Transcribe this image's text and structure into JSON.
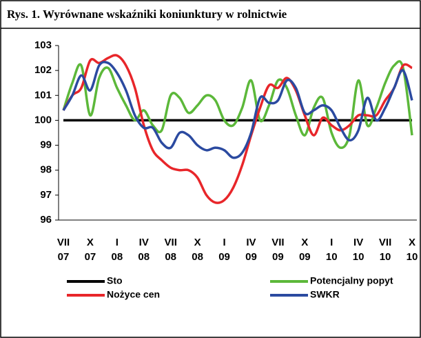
{
  "chart_data": {
    "type": "line",
    "title": "Rys. 1. Wyrównane wskaźniki koniunktury w rolnictwie",
    "categories": [
      [
        "VII",
        "07"
      ],
      null,
      null,
      [
        "X",
        "07"
      ],
      null,
      null,
      [
        "I",
        "08"
      ],
      null,
      null,
      [
        "IV",
        "08"
      ],
      null,
      null,
      [
        "VII",
        "08"
      ],
      null,
      null,
      [
        "X",
        "08"
      ],
      null,
      null,
      [
        "I",
        "09"
      ],
      null,
      null,
      [
        "IV",
        "09"
      ],
      null,
      null,
      [
        "VII",
        "09"
      ],
      null,
      null,
      [
        "X",
        "09"
      ],
      null,
      null,
      [
        "I",
        "10"
      ],
      null,
      null,
      [
        "IV",
        "10"
      ],
      null,
      null,
      [
        "VII",
        "10"
      ],
      null,
      null,
      [
        "X",
        "10"
      ]
    ],
    "ylim": [
      96,
      103
    ],
    "yticks": [
      96,
      97,
      98,
      99,
      100,
      101,
      102,
      103
    ],
    "series": [
      {
        "name": "Sto",
        "color": "#000000",
        "values": [
          100,
          100,
          100,
          100,
          100,
          100,
          100,
          100,
          100,
          100,
          100,
          100,
          100,
          100,
          100,
          100,
          100,
          100,
          100,
          100,
          100,
          100,
          100,
          100,
          100,
          100,
          100,
          100,
          100,
          100,
          100,
          100,
          100,
          100,
          100,
          100,
          100,
          100,
          100,
          100
        ]
      },
      {
        "name": "Potencjalny popyt",
        "color": "#5cb83a",
        "values": [
          100.4,
          101.5,
          102.2,
          100.2,
          101.7,
          102.1,
          101.3,
          100.6,
          100.0,
          100.4,
          99.8,
          99.6,
          101.0,
          100.9,
          100.3,
          100.6,
          101.0,
          100.8,
          100.0,
          99.8,
          100.5,
          101.6,
          100.0,
          100.6,
          101.6,
          101.3,
          100.2,
          99.4,
          100.5,
          100.9,
          99.5,
          98.9,
          99.4,
          101.6,
          99.8,
          100.5,
          101.5,
          102.2,
          102.1,
          99.4
        ]
      },
      {
        "name": "Nożyce cen",
        "color": "#e8262a",
        "values": [
          100.4,
          101.0,
          101.3,
          102.4,
          102.3,
          102.5,
          102.6,
          102.2,
          101.3,
          99.8,
          98.8,
          98.4,
          98.1,
          98.0,
          98.0,
          97.7,
          97.0,
          96.7,
          96.8,
          97.3,
          98.2,
          99.4,
          100.5,
          101.4,
          101.3,
          101.7,
          101.2,
          100.2,
          99.4,
          100.1,
          99.8,
          99.6,
          99.8,
          100.2,
          100.2,
          100.2,
          100.8,
          101.3,
          102.2,
          102.1
        ]
      },
      {
        "name": "SWKR",
        "color": "#2b4aa0",
        "values": [
          100.4,
          101.0,
          101.8,
          101.2,
          102.2,
          102.3,
          101.9,
          101.2,
          100.2,
          99.7,
          99.7,
          99.1,
          98.9,
          99.5,
          99.4,
          99.0,
          98.8,
          98.9,
          98.8,
          98.5,
          98.7,
          99.5,
          100.9,
          100.7,
          100.8,
          101.6,
          101.3,
          100.3,
          100.4,
          100.6,
          100.4,
          99.7,
          99.2,
          99.6,
          100.9,
          100.0,
          100.5,
          101.3,
          102.0,
          100.8
        ]
      }
    ]
  }
}
